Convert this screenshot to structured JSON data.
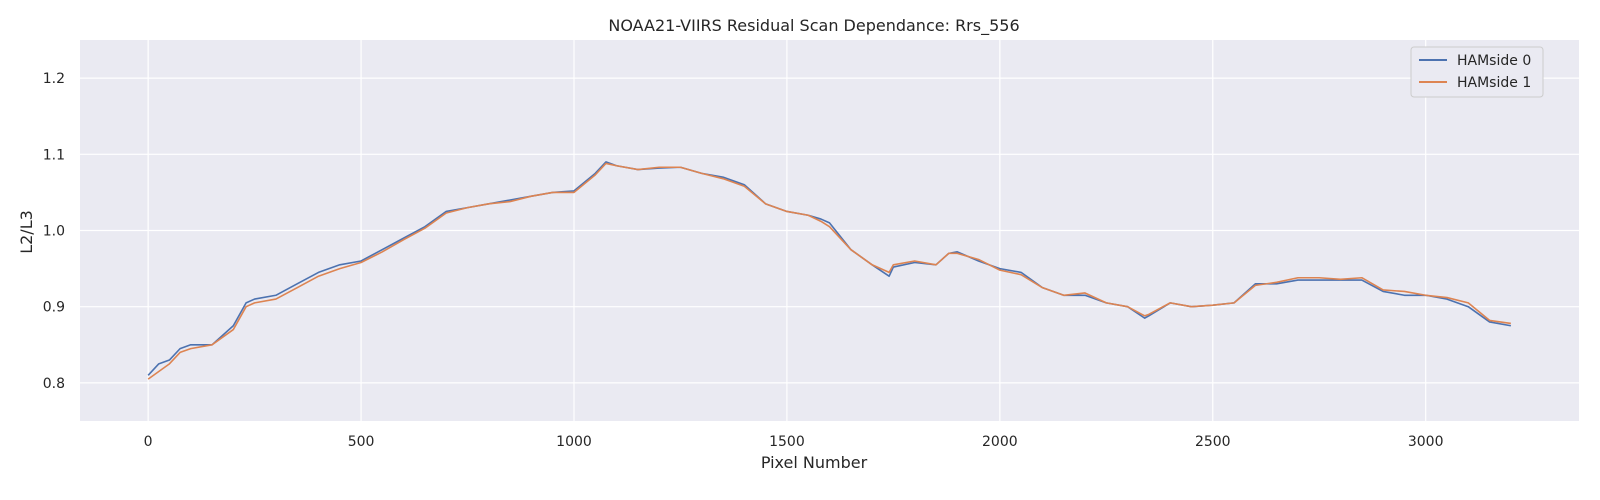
{
  "chart_data": {
    "type": "line",
    "title": "NOAA21-VIIRS Residual Scan Dependance: Rrs_556",
    "xlabel": "Pixel Number",
    "ylabel": "L2/L3",
    "xlim": [
      -160,
      3360
    ],
    "ylim": [
      0.75,
      1.25
    ],
    "xticks": [
      0,
      500,
      1000,
      1500,
      2000,
      2500,
      3000
    ],
    "yticks": [
      0.8,
      0.9,
      1.0,
      1.1,
      1.2
    ],
    "xtick_labels": [
      "0",
      "500",
      "1000",
      "1500",
      "2000",
      "2500",
      "3000"
    ],
    "ytick_labels": [
      "0.8",
      "0.9",
      "1.0",
      "1.1",
      "1.2"
    ],
    "grid": true,
    "legend_position": "top-right",
    "background": "#eaeaf2",
    "series": [
      {
        "name": "HAMside 0",
        "color": "#4c72b0",
        "x": [
          0,
          25,
          50,
          75,
          100,
          150,
          200,
          230,
          250,
          300,
          350,
          400,
          450,
          500,
          550,
          600,
          650,
          700,
          750,
          800,
          850,
          900,
          950,
          1000,
          1050,
          1075,
          1100,
          1150,
          1200,
          1250,
          1300,
          1350,
          1400,
          1450,
          1500,
          1550,
          1580,
          1600,
          1650,
          1700,
          1740,
          1750,
          1800,
          1850,
          1880,
          1900,
          1950,
          2000,
          2050,
          2100,
          2150,
          2200,
          2250,
          2300,
          2340,
          2350,
          2400,
          2450,
          2500,
          2550,
          2600,
          2650,
          2700,
          2750,
          2800,
          2850,
          2900,
          2950,
          3000,
          3050,
          3100,
          3150,
          3200
        ],
        "y": [
          0.81,
          0.825,
          0.83,
          0.845,
          0.85,
          0.85,
          0.875,
          0.905,
          0.91,
          0.915,
          0.93,
          0.945,
          0.955,
          0.96,
          0.975,
          0.99,
          1.005,
          1.025,
          1.03,
          1.035,
          1.04,
          1.045,
          1.05,
          1.052,
          1.075,
          1.09,
          1.085,
          1.08,
          1.082,
          1.083,
          1.075,
          1.07,
          1.06,
          1.035,
          1.025,
          1.02,
          1.015,
          1.01,
          0.975,
          0.955,
          0.94,
          0.952,
          0.958,
          0.955,
          0.97,
          0.972,
          0.96,
          0.95,
          0.945,
          0.925,
          0.915,
          0.915,
          0.905,
          0.9,
          0.885,
          0.888,
          0.905,
          0.9,
          0.902,
          0.905,
          0.93,
          0.93,
          0.935,
          0.935,
          0.935,
          0.935,
          0.92,
          0.915,
          0.915,
          0.91,
          0.9,
          0.88,
          0.875
        ]
      },
      {
        "name": "HAMside 1",
        "color": "#dd8452",
        "x": [
          0,
          25,
          50,
          75,
          100,
          150,
          200,
          230,
          250,
          300,
          350,
          400,
          450,
          500,
          550,
          600,
          650,
          700,
          750,
          800,
          850,
          900,
          950,
          1000,
          1050,
          1075,
          1100,
          1150,
          1200,
          1250,
          1300,
          1350,
          1400,
          1450,
          1500,
          1550,
          1580,
          1600,
          1650,
          1700,
          1740,
          1750,
          1800,
          1850,
          1880,
          1900,
          1950,
          2000,
          2050,
          2100,
          2150,
          2200,
          2250,
          2300,
          2340,
          2350,
          2400,
          2450,
          2500,
          2550,
          2600,
          2650,
          2700,
          2750,
          2800,
          2850,
          2900,
          2950,
          3000,
          3050,
          3100,
          3150,
          3200
        ],
        "y": [
          0.805,
          0.815,
          0.825,
          0.84,
          0.845,
          0.85,
          0.87,
          0.9,
          0.905,
          0.91,
          0.925,
          0.94,
          0.95,
          0.958,
          0.972,
          0.988,
          1.003,
          1.023,
          1.03,
          1.035,
          1.038,
          1.045,
          1.05,
          1.05,
          1.073,
          1.088,
          1.085,
          1.08,
          1.083,
          1.083,
          1.075,
          1.068,
          1.058,
          1.035,
          1.025,
          1.02,
          1.012,
          1.005,
          0.975,
          0.955,
          0.945,
          0.955,
          0.96,
          0.955,
          0.97,
          0.97,
          0.962,
          0.948,
          0.942,
          0.925,
          0.915,
          0.918,
          0.905,
          0.9,
          0.888,
          0.89,
          0.905,
          0.9,
          0.902,
          0.905,
          0.928,
          0.932,
          0.938,
          0.938,
          0.936,
          0.938,
          0.922,
          0.92,
          0.915,
          0.912,
          0.905,
          0.882,
          0.878
        ]
      }
    ]
  }
}
